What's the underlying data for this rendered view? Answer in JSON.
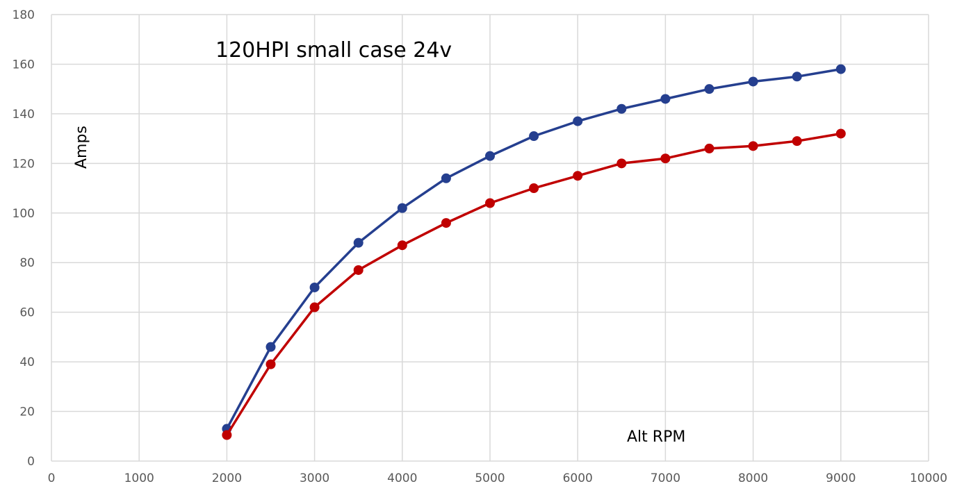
{
  "chart_data": {
    "type": "scatter",
    "title": "120HPI small case 24v",
    "xlabel": "Alt RPM",
    "ylabel": "Amps",
    "xlim": [
      0,
      10000
    ],
    "ylim": [
      0,
      180
    ],
    "x_ticks": [
      0,
      1000,
      2000,
      3000,
      4000,
      5000,
      6000,
      7000,
      8000,
      9000,
      10000
    ],
    "y_ticks": [
      0,
      20,
      40,
      60,
      80,
      100,
      120,
      140,
      160,
      180
    ],
    "grid": true,
    "legend": "none",
    "series": [
      {
        "color": "#253f8f",
        "x": [
          2000,
          2500,
          3000,
          3500,
          4000,
          4500,
          5000,
          5500,
          6000,
          6500,
          7000,
          7500,
          8000,
          8500,
          9000
        ],
        "y": [
          13,
          46,
          70,
          88,
          102,
          114,
          123,
          131,
          137,
          142,
          146,
          150,
          153,
          155,
          158
        ]
      },
      {
        "color": "#c00000",
        "x": [
          2000,
          2500,
          3000,
          3500,
          4000,
          4500,
          5000,
          5500,
          6000,
          6500,
          7000,
          7500,
          8000,
          8500,
          9000
        ],
        "y": [
          10.5,
          39,
          62,
          77,
          87,
          96,
          104,
          110,
          115,
          120,
          122,
          126,
          127,
          129,
          132
        ]
      }
    ]
  }
}
